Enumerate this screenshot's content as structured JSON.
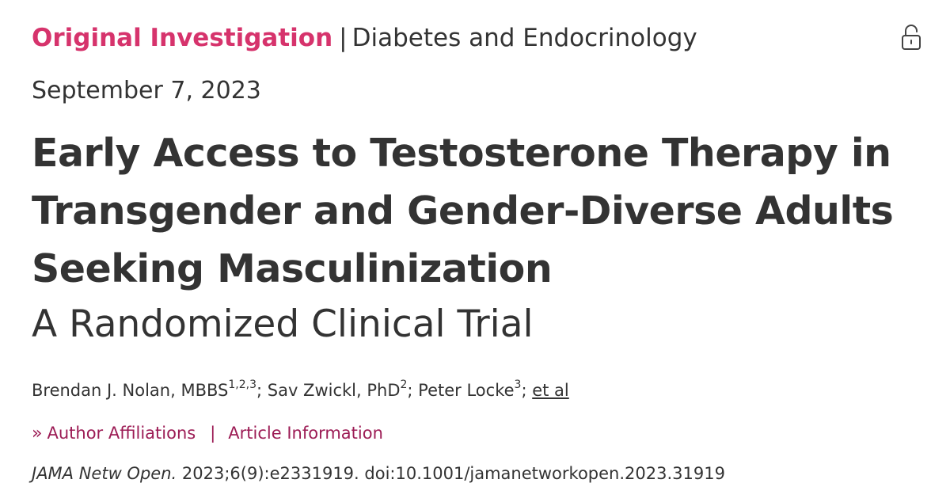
{
  "header": {
    "category": "Original Investigation",
    "separator": "|",
    "subcategory": "Diabetes and Endocrinology",
    "access_icon": "unlock-icon"
  },
  "article": {
    "date": "September 7, 2023",
    "title": "Early Access to Testosterone Therapy in Transgender and Gender-Diverse Adults Seeking Masculinization",
    "subtitle": "A Randomized Clinical Trial"
  },
  "authors": [
    {
      "name": "Brendan J. Nolan, MBBS",
      "affiliations": "1,2,3"
    },
    {
      "name": "Sav Zwickl, PhD",
      "affiliations": "2"
    },
    {
      "name": "Peter Locke",
      "affiliations": "3"
    }
  ],
  "author_separator": ";",
  "et_al": "et al",
  "links": {
    "chevron": "»",
    "author_affiliations": "Author Affiliations",
    "separator": "|",
    "article_information": "Article Information"
  },
  "citation": {
    "journal": "JAMA Netw Open.",
    "reference": "2023;6(9):e2331919. doi:10.1001/jamanetworkopen.2023.31919"
  },
  "colors": {
    "accent": "#d6336c",
    "link": "#9c1c55",
    "text": "#333333"
  }
}
